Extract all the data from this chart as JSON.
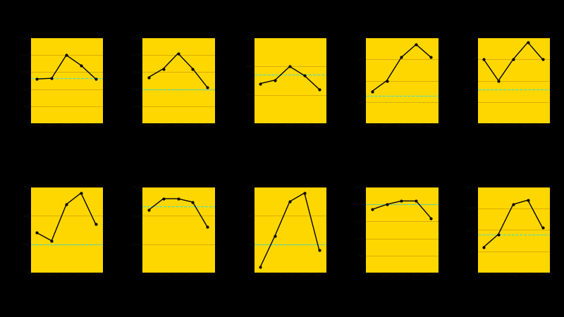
{
  "background": "#000000",
  "panel_color": "#FFD700",
  "line_color": "#000000",
  "mean_line_color": "#40E0D0",
  "years": [
    2016,
    2017,
    2018,
    2019,
    2020
  ],
  "charts": [
    {
      "values": [
        1300,
        1320,
        2000,
        1700,
        1300
      ],
      "ylim": [
        0,
        2500
      ],
      "yticks": [
        0,
        500,
        1000,
        1500,
        2000,
        2500
      ],
      "mean": 1324
    },
    {
      "values": [
        2700,
        3200,
        4100,
        3200,
        2100
      ],
      "ylim": [
        0,
        5000
      ],
      "yticks": [
        0,
        1000,
        2000,
        3000,
        4000,
        5000
      ],
      "mean": 2000
    },
    {
      "values": [
        350,
        380,
        500,
        420,
        300
      ],
      "ylim": [
        0,
        750
      ],
      "yticks": [
        0,
        250,
        500,
        750
      ],
      "mean": 430
    },
    {
      "values": [
        150,
        200,
        310,
        370,
        310
      ],
      "ylim": [
        0,
        400
      ],
      "yticks": [
        0,
        100,
        200,
        300,
        400
      ],
      "mean": 130
    },
    {
      "values": [
        75,
        50,
        75,
        95,
        75
      ],
      "ylim": [
        0,
        100
      ],
      "yticks": [
        0,
        25,
        50,
        75,
        100
      ],
      "mean": 40
    },
    {
      "values": [
        350,
        280,
        600,
        700,
        425
      ],
      "ylim": [
        0,
        750
      ],
      "yticks": [
        0,
        250,
        500,
        750
      ],
      "mean": 250
    },
    {
      "values": [
        5500,
        6500,
        6500,
        6200,
        4000
      ],
      "ylim": [
        0,
        7500
      ],
      "yticks": [
        0,
        2500,
        5000,
        7500
      ],
      "mean": 5800
    },
    {
      "values": [
        10,
        65,
        125,
        140,
        40
      ],
      "ylim": [
        0,
        150
      ],
      "yticks": [
        0,
        50,
        100,
        150
      ],
      "mean": 50
    },
    {
      "values": [
        1850,
        2000,
        2100,
        2100,
        1600
      ],
      "ylim": [
        0,
        2500
      ],
      "yticks": [
        0,
        500,
        1000,
        1500,
        2000,
        2500
      ],
      "mean": 2000
    },
    {
      "values": [
        600,
        900,
        1600,
        1700,
        1050
      ],
      "ylim": [
        0,
        2000
      ],
      "yticks": [
        0,
        500,
        1000,
        1500,
        2000
      ],
      "mean": 900
    }
  ]
}
